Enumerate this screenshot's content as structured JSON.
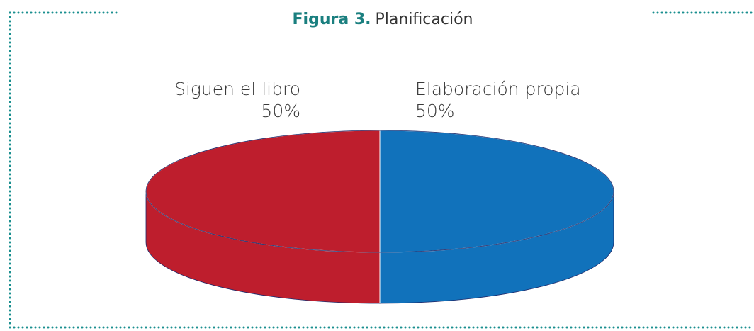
{
  "chart_data": {
    "type": "pie3d",
    "figure_label": "Figura 3.",
    "title": "Planificación",
    "categories": [
      "Elaboración propia",
      "Siguen el libro"
    ],
    "values": [
      50,
      50
    ],
    "value_labels": [
      "50%",
      "50%"
    ],
    "colors": [
      "#1172bb",
      "#be1e2d"
    ]
  }
}
